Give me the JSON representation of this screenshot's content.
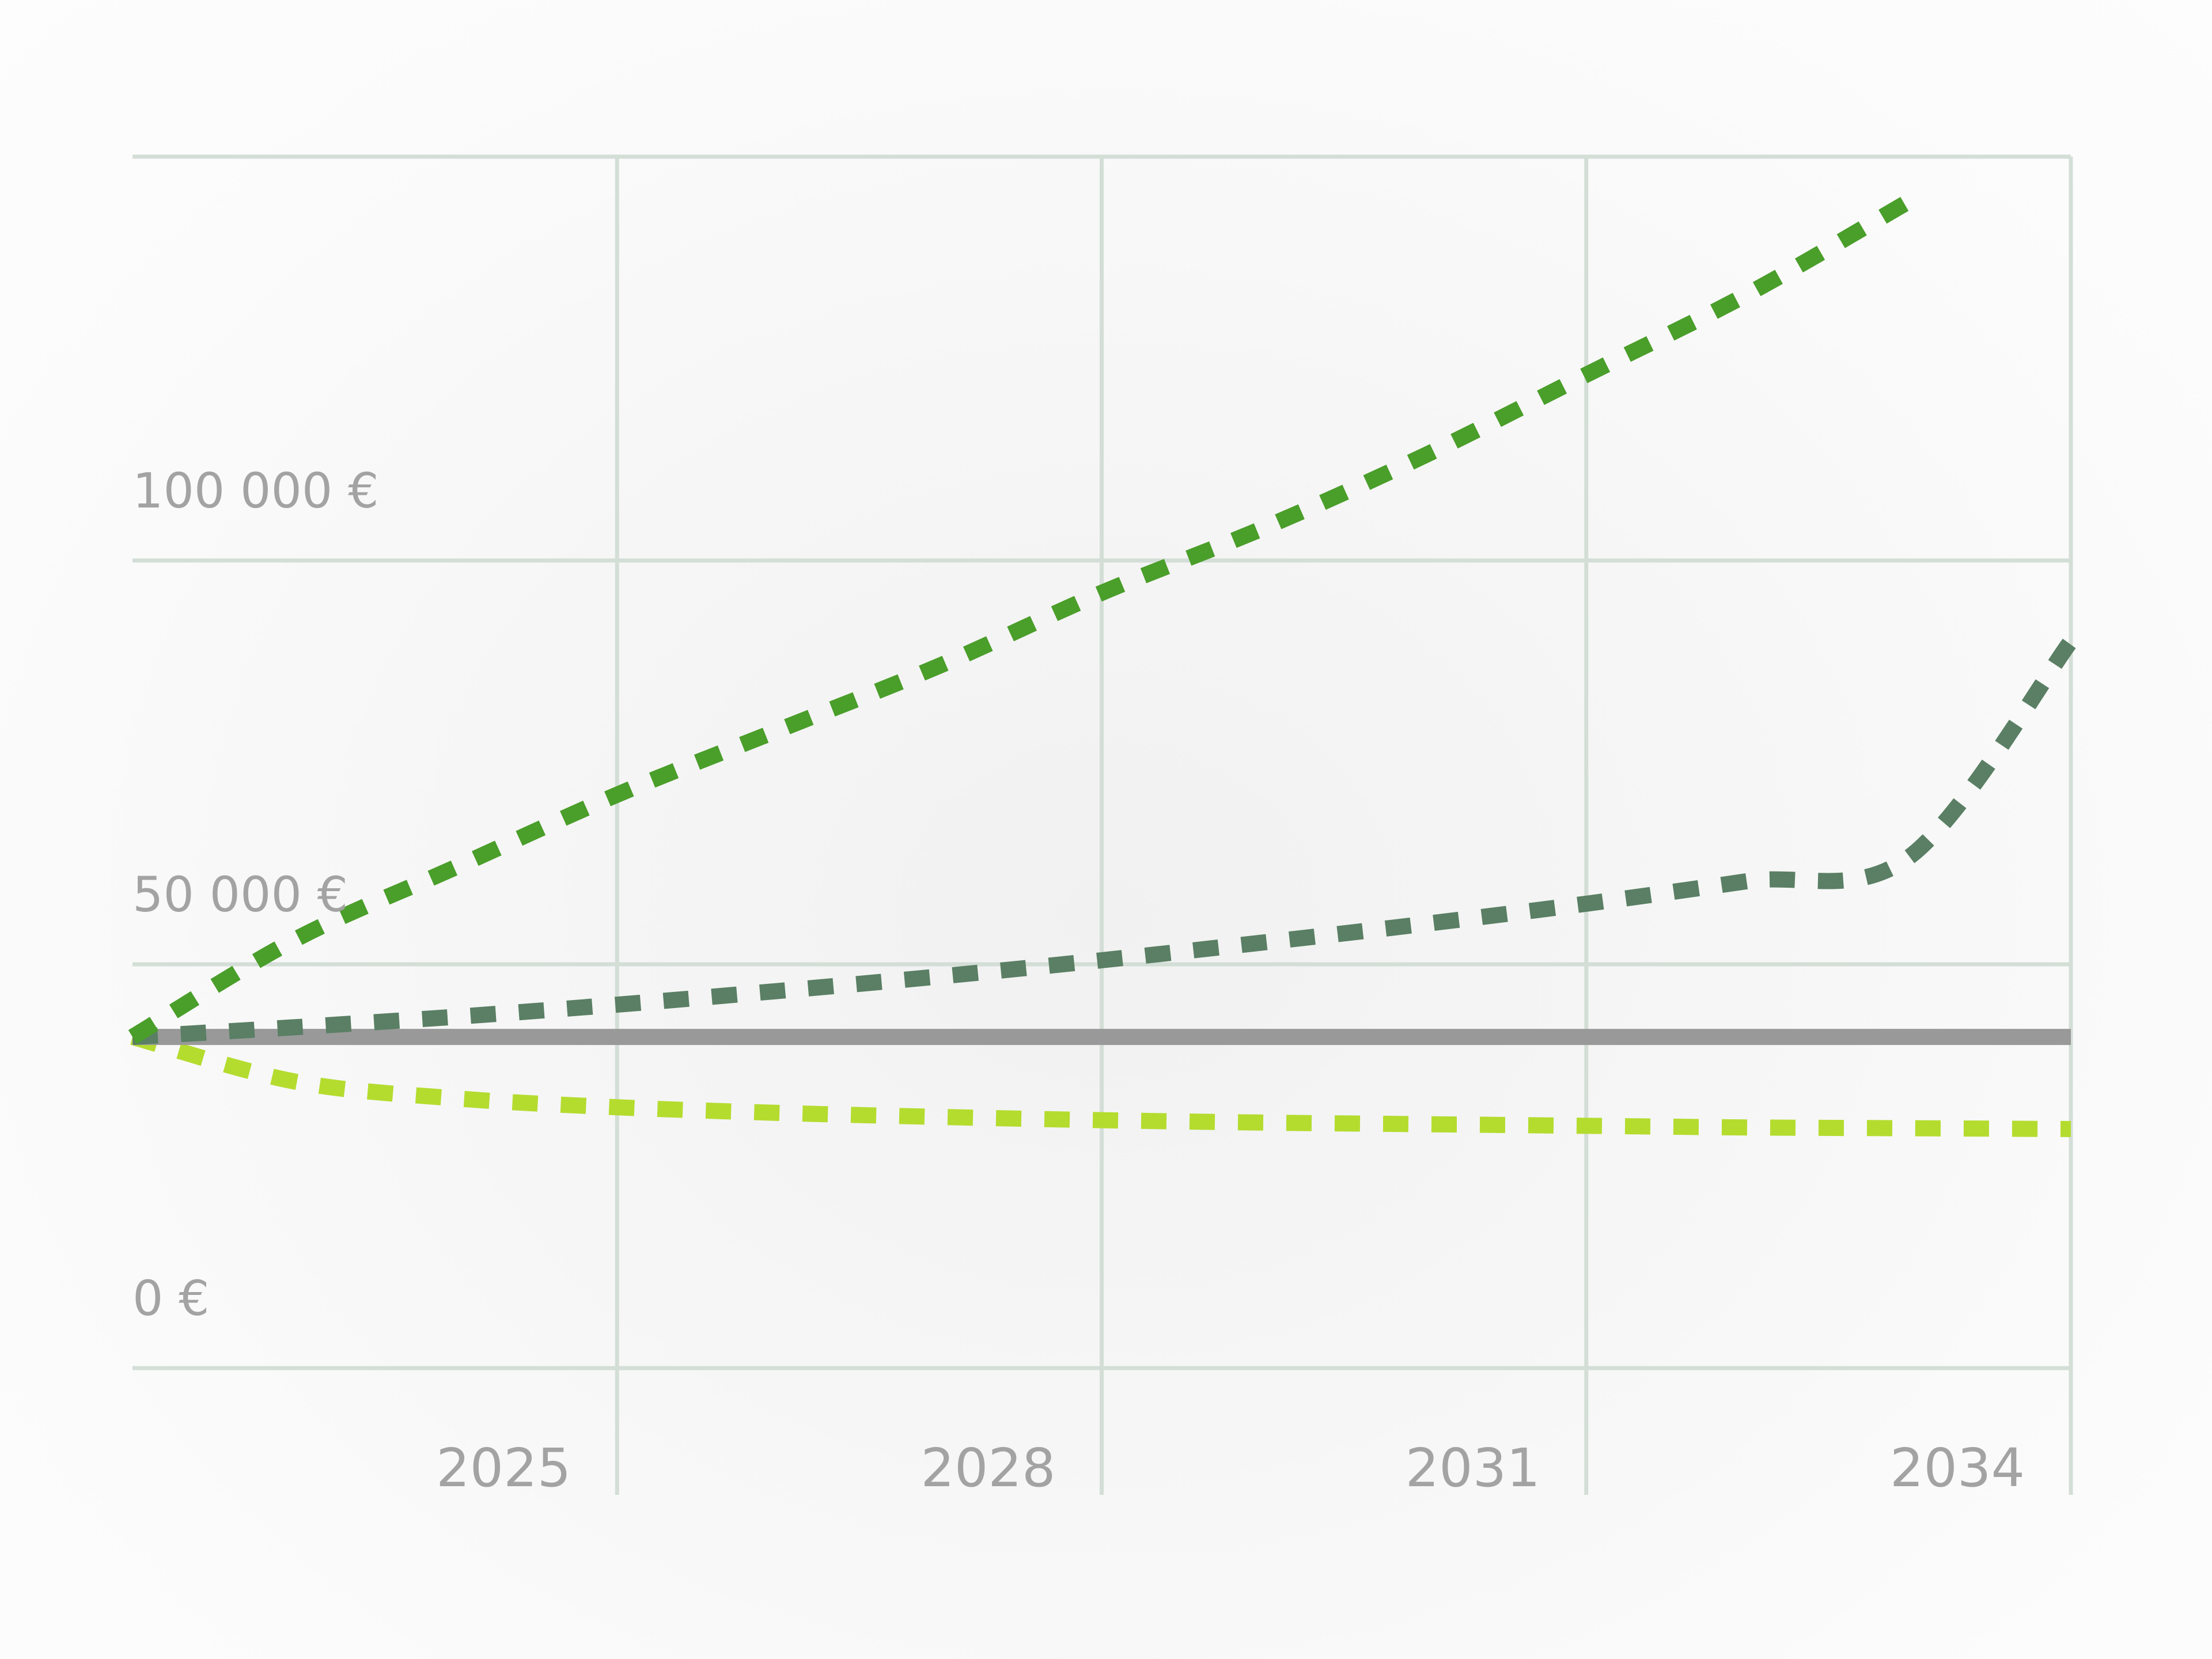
{
  "chart_data": {
    "type": "line",
    "x": [
      2022,
      2023,
      2024,
      2025,
      2026,
      2027,
      2028,
      2029,
      2030,
      2031,
      2032,
      2033,
      2034
    ],
    "xlim": [
      2022,
      2034
    ],
    "ylim": [
      0,
      150000
    ],
    "x_tick_labels": [
      "2025",
      "2028",
      "2031",
      "2034"
    ],
    "x_ticks": [
      2025,
      2028,
      2031,
      2034
    ],
    "y_tick_labels": [
      "0 €",
      "50 000 €",
      "100 000 €"
    ],
    "y_ticks": [
      0,
      50000,
      100000
    ],
    "grid": true,
    "series": [
      {
        "role": "high",
        "color": "#4a9e2a",
        "style": "dotted",
        "values": [
          41000,
          53000,
          62000,
          71000,
          79000,
          87000,
          96000,
          104000,
          113000,
          123000,
          133000,
          144500,
          null
        ]
      },
      {
        "role": "mid",
        "color": "#5a7f64",
        "style": "dotted",
        "values": [
          41000,
          42200,
          43500,
          45000,
          46700,
          48500,
          50500,
          52700,
          55000,
          57500,
          60300,
          63300,
          90000
        ]
      },
      {
        "role": "baseline",
        "color": "#999999",
        "style": "solid",
        "values": [
          41000,
          41000,
          41000,
          41000,
          41000,
          41000,
          41000,
          41000,
          41000,
          41000,
          41000,
          41000,
          41000
        ]
      },
      {
        "role": "low",
        "color": "#b4dc2f",
        "style": "dotted",
        "values": [
          41000,
          35500,
          33400,
          32300,
          31600,
          31100,
          30700,
          30400,
          30200,
          30000,
          29800,
          29700,
          29600
        ]
      }
    ]
  },
  "colors": {
    "grid": "#d3ded6",
    "tick_text": "#a3a3a3"
  }
}
